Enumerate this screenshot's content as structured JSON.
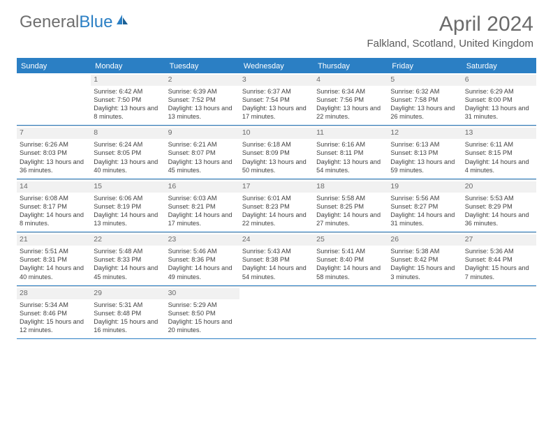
{
  "logo": {
    "text1": "General",
    "text2": "Blue"
  },
  "title": {
    "month": "April 2024",
    "location": "Falkland, Scotland, United Kingdom"
  },
  "colors": {
    "header_bg": "#2b7fc4",
    "header_text": "#ffffff",
    "daynum_bg": "#f1f1f1",
    "rule": "#2b7fc4",
    "text": "#404040"
  },
  "dayNames": [
    "Sunday",
    "Monday",
    "Tuesday",
    "Wednesday",
    "Thursday",
    "Friday",
    "Saturday"
  ],
  "weeks": [
    [
      null,
      {
        "n": "1",
        "sr": "6:42 AM",
        "ss": "7:50 PM",
        "dl": "13 hours and 8 minutes."
      },
      {
        "n": "2",
        "sr": "6:39 AM",
        "ss": "7:52 PM",
        "dl": "13 hours and 13 minutes."
      },
      {
        "n": "3",
        "sr": "6:37 AM",
        "ss": "7:54 PM",
        "dl": "13 hours and 17 minutes."
      },
      {
        "n": "4",
        "sr": "6:34 AM",
        "ss": "7:56 PM",
        "dl": "13 hours and 22 minutes."
      },
      {
        "n": "5",
        "sr": "6:32 AM",
        "ss": "7:58 PM",
        "dl": "13 hours and 26 minutes."
      },
      {
        "n": "6",
        "sr": "6:29 AM",
        "ss": "8:00 PM",
        "dl": "13 hours and 31 minutes."
      }
    ],
    [
      {
        "n": "7",
        "sr": "6:26 AM",
        "ss": "8:03 PM",
        "dl": "13 hours and 36 minutes."
      },
      {
        "n": "8",
        "sr": "6:24 AM",
        "ss": "8:05 PM",
        "dl": "13 hours and 40 minutes."
      },
      {
        "n": "9",
        "sr": "6:21 AM",
        "ss": "8:07 PM",
        "dl": "13 hours and 45 minutes."
      },
      {
        "n": "10",
        "sr": "6:18 AM",
        "ss": "8:09 PM",
        "dl": "13 hours and 50 minutes."
      },
      {
        "n": "11",
        "sr": "6:16 AM",
        "ss": "8:11 PM",
        "dl": "13 hours and 54 minutes."
      },
      {
        "n": "12",
        "sr": "6:13 AM",
        "ss": "8:13 PM",
        "dl": "13 hours and 59 minutes."
      },
      {
        "n": "13",
        "sr": "6:11 AM",
        "ss": "8:15 PM",
        "dl": "14 hours and 4 minutes."
      }
    ],
    [
      {
        "n": "14",
        "sr": "6:08 AM",
        "ss": "8:17 PM",
        "dl": "14 hours and 8 minutes."
      },
      {
        "n": "15",
        "sr": "6:06 AM",
        "ss": "8:19 PM",
        "dl": "14 hours and 13 minutes."
      },
      {
        "n": "16",
        "sr": "6:03 AM",
        "ss": "8:21 PM",
        "dl": "14 hours and 17 minutes."
      },
      {
        "n": "17",
        "sr": "6:01 AM",
        "ss": "8:23 PM",
        "dl": "14 hours and 22 minutes."
      },
      {
        "n": "18",
        "sr": "5:58 AM",
        "ss": "8:25 PM",
        "dl": "14 hours and 27 minutes."
      },
      {
        "n": "19",
        "sr": "5:56 AM",
        "ss": "8:27 PM",
        "dl": "14 hours and 31 minutes."
      },
      {
        "n": "20",
        "sr": "5:53 AM",
        "ss": "8:29 PM",
        "dl": "14 hours and 36 minutes."
      }
    ],
    [
      {
        "n": "21",
        "sr": "5:51 AM",
        "ss": "8:31 PM",
        "dl": "14 hours and 40 minutes."
      },
      {
        "n": "22",
        "sr": "5:48 AM",
        "ss": "8:33 PM",
        "dl": "14 hours and 45 minutes."
      },
      {
        "n": "23",
        "sr": "5:46 AM",
        "ss": "8:36 PM",
        "dl": "14 hours and 49 minutes."
      },
      {
        "n": "24",
        "sr": "5:43 AM",
        "ss": "8:38 PM",
        "dl": "14 hours and 54 minutes."
      },
      {
        "n": "25",
        "sr": "5:41 AM",
        "ss": "8:40 PM",
        "dl": "14 hours and 58 minutes."
      },
      {
        "n": "26",
        "sr": "5:38 AM",
        "ss": "8:42 PM",
        "dl": "15 hours and 3 minutes."
      },
      {
        "n": "27",
        "sr": "5:36 AM",
        "ss": "8:44 PM",
        "dl": "15 hours and 7 minutes."
      }
    ],
    [
      {
        "n": "28",
        "sr": "5:34 AM",
        "ss": "8:46 PM",
        "dl": "15 hours and 12 minutes."
      },
      {
        "n": "29",
        "sr": "5:31 AM",
        "ss": "8:48 PM",
        "dl": "15 hours and 16 minutes."
      },
      {
        "n": "30",
        "sr": "5:29 AM",
        "ss": "8:50 PM",
        "dl": "15 hours and 20 minutes."
      },
      null,
      null,
      null,
      null
    ]
  ],
  "labels": {
    "sunrise": "Sunrise: ",
    "sunset": "Sunset: ",
    "daylight": "Daylight: "
  }
}
